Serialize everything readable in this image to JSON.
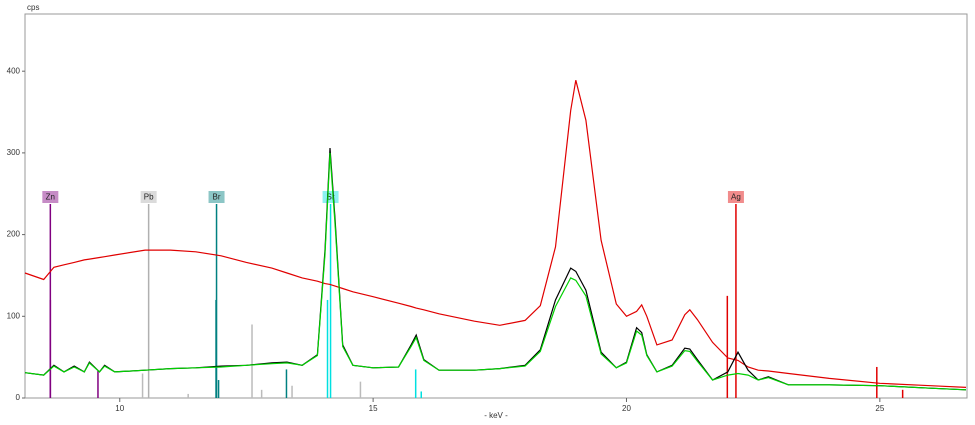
{
  "chart_data": {
    "type": "line",
    "y_label": "cps",
    "x_label": "- keV -",
    "xlim": [
      8.13,
      26.72
    ],
    "ylim": [
      0,
      470
    ],
    "xticks": [
      10,
      15,
      20,
      25
    ],
    "yticks": [
      0,
      100,
      200,
      300,
      400
    ],
    "x": [
      8.13,
      8.5,
      8.7,
      8.9,
      9.1,
      9.3,
      9.4,
      9.6,
      9.7,
      9.9,
      10.5,
      11.0,
      11.5,
      12.0,
      12.5,
      13.0,
      13.3,
      13.6,
      13.9,
      14.05,
      14.15,
      14.25,
      14.4,
      14.6,
      15.0,
      15.5,
      15.75,
      15.85,
      16.0,
      16.3,
      17.0,
      17.5,
      18.0,
      18.3,
      18.6,
      18.9,
      19.0,
      19.2,
      19.5,
      19.8,
      20.0,
      20.2,
      20.3,
      20.4,
      20.6,
      20.9,
      21.15,
      21.25,
      21.4,
      21.7,
      22.0,
      22.2,
      22.4,
      22.6,
      22.8,
      23.2,
      24.0,
      25.0,
      26.0,
      26.7
    ],
    "series": [
      {
        "color": "#e00000",
        "values": [
          153,
          145,
          160,
          163,
          166,
          169,
          170,
          172,
          173,
          175,
          181,
          181,
          179,
          174,
          166,
          159,
          153,
          147,
          143,
          140,
          139,
          137,
          134,
          130,
          124,
          116,
          112,
          110,
          108,
          103,
          94,
          89,
          95,
          113,
          185,
          352,
          389,
          340,
          193,
          115,
          100,
          106,
          114,
          100,
          65,
          71,
          102,
          108,
          96,
          68,
          49,
          46,
          38,
          34,
          33,
          30,
          24,
          18,
          15,
          13
        ]
      },
      {
        "color": "#000000",
        "values": [
          31,
          28,
          40,
          32,
          39,
          32,
          44,
          32,
          40,
          32,
          34,
          36,
          37,
          39,
          40,
          43,
          44,
          40,
          53,
          181,
          306,
          218,
          65,
          40,
          37,
          38,
          65,
          77,
          47,
          34,
          34,
          36,
          40,
          59,
          120,
          159,
          155,
          132,
          56,
          37,
          44,
          86,
          80,
          53,
          32,
          40,
          61,
          60,
          47,
          22,
          32,
          56,
          34,
          22,
          26,
          16,
          16,
          15,
          12,
          10
        ]
      },
      {
        "color": "#00d000",
        "values": [
          31,
          28,
          39,
          32,
          38,
          32,
          43,
          32,
          39,
          32,
          34,
          36,
          37,
          38,
          40,
          42,
          43,
          40,
          52,
          176,
          300,
          212,
          63,
          40,
          37,
          38,
          63,
          74,
          46,
          34,
          34,
          36,
          39,
          57,
          112,
          147,
          144,
          125,
          54,
          37,
          43,
          82,
          77,
          52,
          32,
          39,
          58,
          57,
          45,
          22,
          28,
          30,
          28,
          22,
          25,
          16,
          16,
          15,
          12,
          10
        ]
      }
    ],
    "markers": [
      {
        "label": "Zn",
        "x": 8.63,
        "color": "#800080"
      },
      {
        "label": "Pb",
        "x": 10.57,
        "color": "#b0b0b0"
      },
      {
        "label": "Br",
        "x": 11.91,
        "color": "#008080"
      },
      {
        "label": "Sr",
        "x": 14.16,
        "color": "#00e0e0"
      },
      {
        "label": "Ag",
        "x": 22.16,
        "color": "#e00000"
      }
    ],
    "lines": [
      {
        "x": 8.63,
        "height": 120,
        "color": "#800080"
      },
      {
        "x": 9.57,
        "height": 33,
        "color": "#800080"
      },
      {
        "x": 10.45,
        "height": 30,
        "color": "#bbbbbb"
      },
      {
        "x": 11.35,
        "height": 5,
        "color": "#bbbbbb"
      },
      {
        "x": 11.9,
        "height": 120,
        "color": "#008080"
      },
      {
        "x": 11.95,
        "height": 22,
        "color": "#008080"
      },
      {
        "x": 12.61,
        "height": 90,
        "color": "#bbbbbb"
      },
      {
        "x": 12.8,
        "height": 10,
        "color": "#bbbbbb"
      },
      {
        "x": 13.29,
        "height": 35,
        "color": "#008080"
      },
      {
        "x": 13.4,
        "height": 15,
        "color": "#bbbbbb"
      },
      {
        "x": 14.1,
        "height": 120,
        "color": "#00e0e0"
      },
      {
        "x": 14.75,
        "height": 20,
        "color": "#bbbbbb"
      },
      {
        "x": 15.84,
        "height": 35,
        "color": "#00e0e0"
      },
      {
        "x": 15.95,
        "height": 8,
        "color": "#00e0e0"
      },
      {
        "x": 21.99,
        "height": 125,
        "color": "#e00000"
      },
      {
        "x": 24.94,
        "height": 38,
        "color": "#e00000"
      },
      {
        "x": 25.45,
        "height": 10,
        "color": "#e00000"
      }
    ]
  }
}
